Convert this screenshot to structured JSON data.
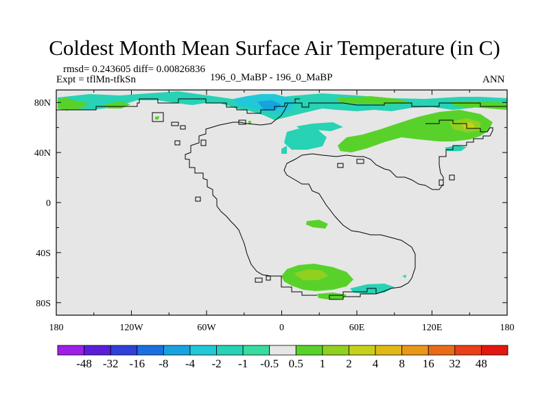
{
  "header": {
    "title": "Coldest Month Mean Surface Air Temperature (in C)",
    "stats": "rmsd= 0.243605 diff= 0.00826836",
    "expt": "Expt = tflMn-tfkSn",
    "case": "196_0_MaBP - 196_0_MaBP",
    "period": "ANN"
  },
  "map": {
    "lon_range": [
      -180,
      180
    ],
    "lat_range": [
      -90,
      90
    ],
    "x_tick_labels": [
      {
        "lon": -180,
        "label": "180"
      },
      {
        "lon": -120,
        "label": "120W"
      },
      {
        "lon": -60,
        "label": "60W"
      },
      {
        "lon": 0,
        "label": "0"
      },
      {
        "lon": 60,
        "label": "60E"
      },
      {
        "lon": 120,
        "label": "120E"
      },
      {
        "lon": 180,
        "label": "180"
      }
    ],
    "y_tick_labels": [
      {
        "lat": 80,
        "label": "80N"
      },
      {
        "lat": 40,
        "label": "40N"
      },
      {
        "lat": 0,
        "label": "0"
      },
      {
        "lat": -40,
        "label": "40S"
      },
      {
        "lat": -80,
        "label": "80S"
      }
    ],
    "background_color": "#e6e6e6"
  },
  "colorbar": {
    "labels": [
      "-48",
      "-32",
      "-16",
      "-8",
      "-4",
      "-2",
      "-1",
      "-0.5",
      "0.5",
      "1",
      "2",
      "4",
      "8",
      "16",
      "32",
      "48"
    ],
    "colors": [
      "#9e1fe6",
      "#5a1ed8",
      "#3040d8",
      "#1a70e0",
      "#18a2e0",
      "#20c8d8",
      "#28d2b4",
      "#38dca0",
      "#e6e6e6",
      "#58d22a",
      "#90d020",
      "#c6d01c",
      "#e0b818",
      "#e89818",
      "#e86c18",
      "#e84018",
      "#e01810"
    ]
  }
}
